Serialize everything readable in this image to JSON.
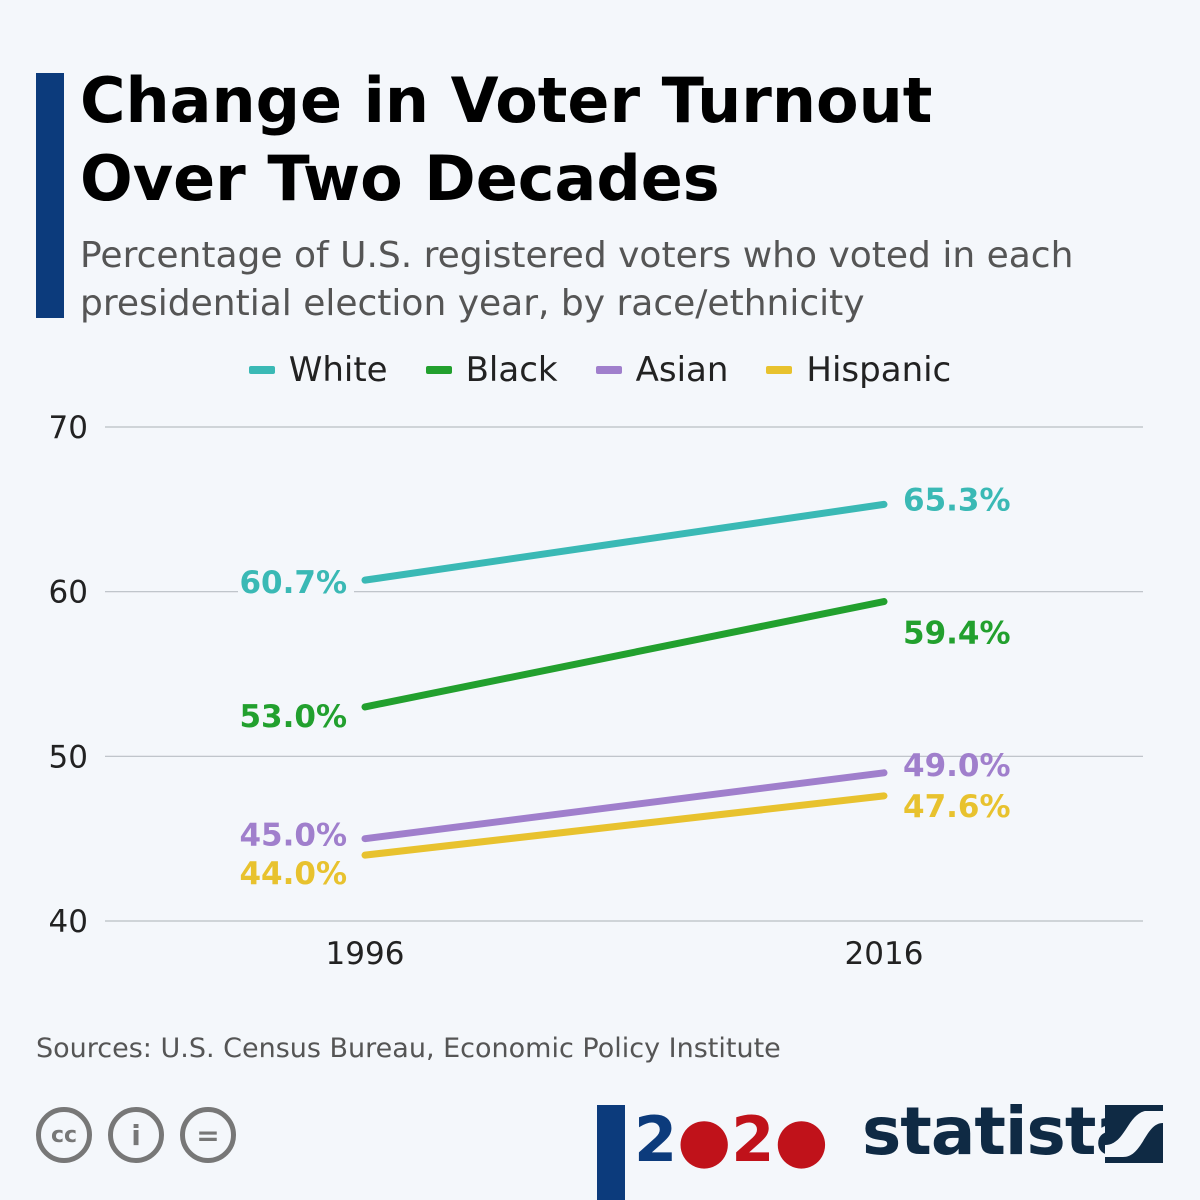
{
  "header": {
    "title_line1": "Change in Voter Turnout",
    "title_line2": "Over Two Decades",
    "subtitle_line1": "Percentage of U.S. registered voters who voted in each",
    "subtitle_line2": "presidential election year, by race/ethnicity"
  },
  "chart_data": {
    "type": "line",
    "x": [
      "1996",
      "2016"
    ],
    "ylim": [
      40,
      70
    ],
    "yticks": [
      "40",
      "50",
      "60",
      "70"
    ],
    "grid": true,
    "legend_placement": "top",
    "series": [
      {
        "name": "White",
        "color": "#3ab9b5",
        "values": [
          60.7,
          65.3
        ],
        "labels": [
          "60.7%",
          "65.3%"
        ]
      },
      {
        "name": "Black",
        "color": "#22a02e",
        "values": [
          53.0,
          59.4
        ],
        "labels": [
          "53.0%",
          "59.4%"
        ]
      },
      {
        "name": "Asian",
        "color": "#a07fcc",
        "values": [
          45.0,
          49.0
        ],
        "labels": [
          "45.0%",
          "49.0%"
        ]
      },
      {
        "name": "Hispanic",
        "color": "#e8c22e",
        "values": [
          44.0,
          47.6
        ],
        "labels": [
          "44.0%",
          "47.6%"
        ]
      }
    ]
  },
  "footer": {
    "source": "Sources: U.S. Census Bureau, Economic Policy Institute",
    "cc_icons": [
      "cc-icon",
      "attribution-icon",
      "no-derivatives-icon"
    ],
    "cc_labels": [
      "cc",
      "i",
      "="
    ],
    "year_logo": "2020",
    "brand": "statista"
  }
}
